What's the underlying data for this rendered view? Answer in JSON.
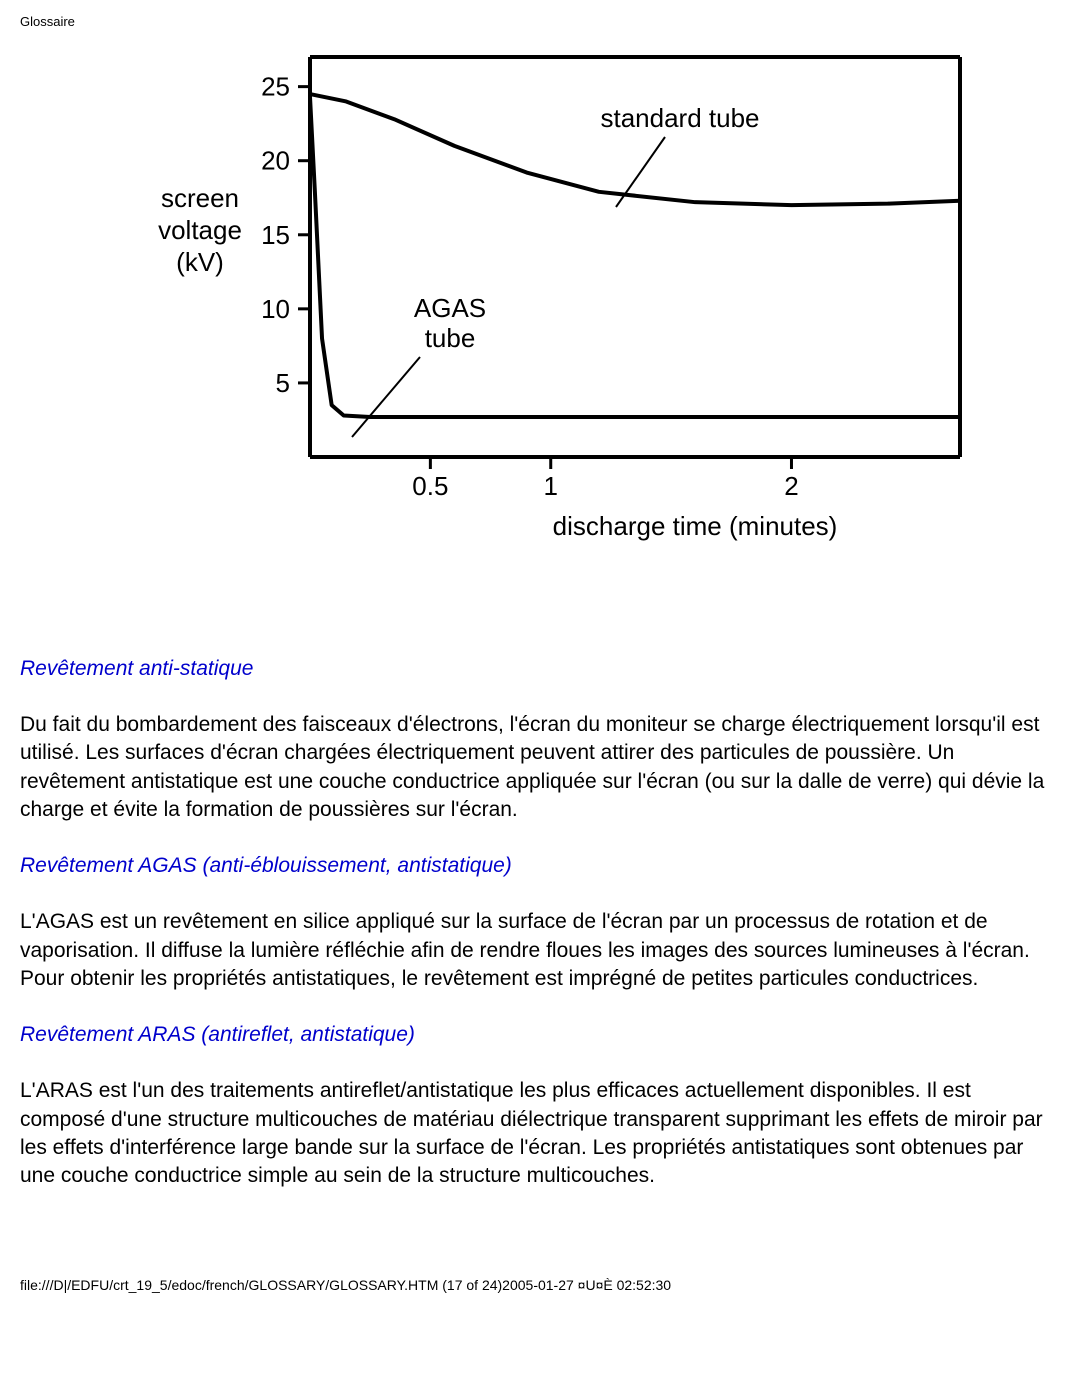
{
  "header": {
    "title": "Glossaire"
  },
  "chart": {
    "type": "line",
    "y_axis_label": "screen\nvoltage\n(kV)",
    "x_axis_label": "discharge time (minutes)",
    "y_ticks": [
      5,
      10,
      15,
      20,
      25
    ],
    "x_ticks": [
      0.5,
      1,
      2
    ],
    "ylim": [
      0,
      27
    ],
    "xlim": [
      0,
      2.7
    ],
    "series": [
      {
        "name": "standard tube",
        "label": "standard tube",
        "color": "#000000",
        "line_width": 4,
        "points": [
          [
            0,
            24.5
          ],
          [
            0.15,
            24
          ],
          [
            0.35,
            22.8
          ],
          [
            0.6,
            21
          ],
          [
            0.9,
            19.2
          ],
          [
            1.2,
            17.9
          ],
          [
            1.6,
            17.2
          ],
          [
            2.0,
            17
          ],
          [
            2.4,
            17.1
          ],
          [
            2.7,
            17.3
          ]
        ]
      },
      {
        "name": "AGAS tube",
        "label": "AGAS\ntube",
        "color": "#000000",
        "line_width": 4,
        "points": [
          [
            0,
            24.3
          ],
          [
            0.02,
            18
          ],
          [
            0.05,
            8
          ],
          [
            0.09,
            3.5
          ],
          [
            0.14,
            2.8
          ],
          [
            0.25,
            2.7
          ],
          [
            0.6,
            2.7
          ],
          [
            1.2,
            2.7
          ],
          [
            2.0,
            2.7
          ],
          [
            2.7,
            2.7
          ]
        ]
      }
    ],
    "axis_color": "#000000",
    "axis_width": 4,
    "tick_length": 12,
    "background_color": "#ffffff",
    "label_fontsize": 26,
    "tick_fontsize": 26
  },
  "sections": [
    {
      "heading": "Revêtement anti-statique",
      "paragraph": "Du fait du bombardement des faisceaux d'électrons, l'écran du moniteur se charge électriquement lorsqu'il est utilisé. Les surfaces d'écran chargées électriquement peuvent attirer des particules de poussière. Un revêtement antistatique est une couche conductrice appliquée sur l'écran (ou sur la dalle de verre) qui dévie la charge et évite la formation de poussières sur l'écran."
    },
    {
      "heading": "Revêtement AGAS (anti-éblouissement, antistatique)",
      "paragraph": "L'AGAS est un revêtement en silice appliqué sur la surface de l'écran par un processus de rotation et de vaporisation. Il diffuse la lumière réfléchie afin de rendre floues les images des sources lumineuses à l'écran. Pour obtenir les propriétés antistatiques, le revêtement est imprégné de petites particules conductrices."
    },
    {
      "heading": "Revêtement ARAS (antireflet, antistatique)",
      "paragraph": "L'ARAS est l'un des traitements antireflet/antistatique les plus efficaces actuellement disponibles. Il est composé d'une structure multicouches de matériau diélectrique transparent supprimant les effets de miroir par les effets d'interférence large bande sur la surface de l'écran. Les propriétés antistatiques sont obtenues par une couche conductrice simple au sein de la structure multicouches."
    }
  ],
  "footer": {
    "text": "file:///D|/EDFU/crt_19_5/edoc/french/GLOSSARY/GLOSSARY.HTM (17 of 24)2005-01-27 ¤U¤È 02:52:30"
  }
}
